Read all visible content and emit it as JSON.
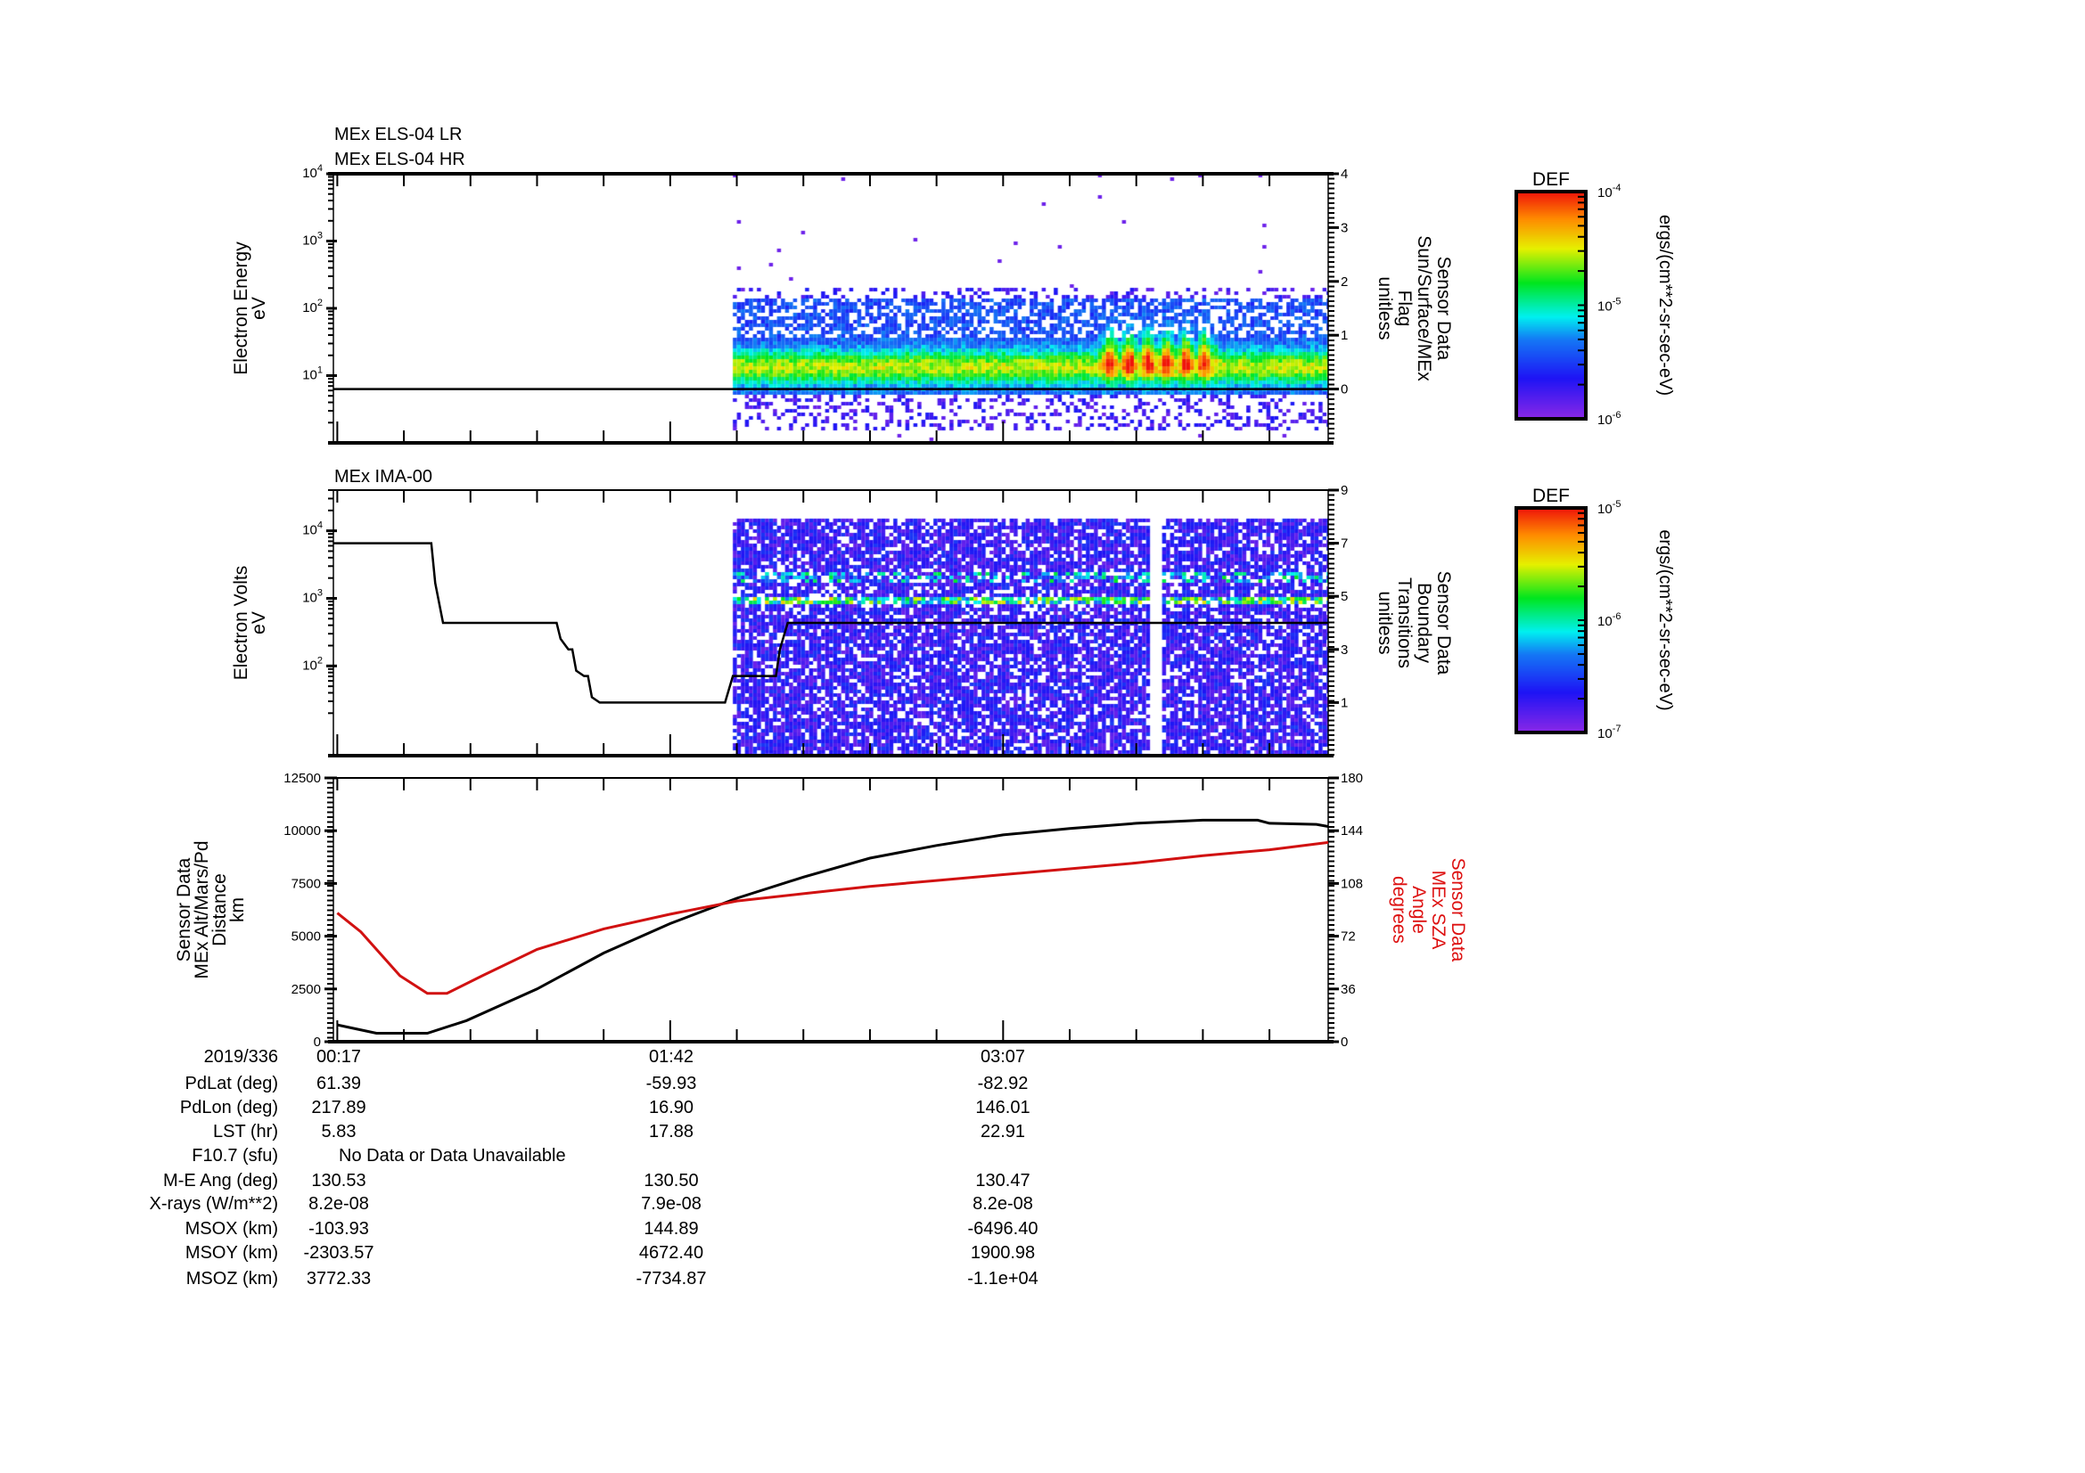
{
  "chart_data": [
    {
      "type": "heatmap",
      "titles": [
        "MEx ELS-04 LR",
        "MEx ELS-04 HR"
      ],
      "ylabel": [
        "Electron Energy",
        "eV"
      ],
      "yscale": "log",
      "ylim": [
        1,
        10000
      ],
      "yticks": [
        [
          "10",
          "1"
        ],
        [
          "10",
          "2"
        ],
        [
          "10",
          "3"
        ],
        [
          "10",
          "4"
        ]
      ],
      "y2label": [
        "Sensor Data",
        "Sun/Surface/MEx",
        "Flag",
        "unitless"
      ],
      "y2lim": [
        -1,
        4
      ],
      "y2ticks": [
        "0",
        "1",
        "2",
        "3",
        "4"
      ],
      "xlim_minutes": [
        16,
        270
      ],
      "data_start_minutes": 118,
      "line_series": {
        "name": "Sun/Surface/MEx Flag",
        "x": [
          16,
          270
        ],
        "y": [
          0,
          0
        ]
      },
      "colorbar": {
        "title": "DEF",
        "range": [
          1e-06,
          0.0001
        ],
        "ticks": [
          [
            "10",
            "-4"
          ],
          [
            "10",
            "-5"
          ],
          [
            "10",
            "-6"
          ]
        ],
        "units": "ergs/(cm**2-sr-sec-eV)"
      }
    },
    {
      "type": "heatmap",
      "titles": [
        "MEx IMA-00"
      ],
      "ylabel": [
        "Electron Volts",
        "eV"
      ],
      "yscale": "log",
      "ylim": [
        4.7,
        40000
      ],
      "yticks": [
        [
          "10",
          "2"
        ],
        [
          "10",
          "3"
        ],
        [
          "10",
          "4"
        ]
      ],
      "y2label": [
        "Sensor Data",
        "Boundary",
        "Transitions",
        "unitless"
      ],
      "y2lim": [
        -1,
        9
      ],
      "y2ticks": [
        "1",
        "3",
        "5",
        "7",
        "9"
      ],
      "xlim_minutes": [
        16,
        270
      ],
      "data_start_minutes": 118,
      "data_gap_minutes": [
        224,
        227
      ],
      "line_series": {
        "name": "Boundary Transitions",
        "x": [
          16,
          41,
          42,
          44,
          73,
          74,
          76,
          77,
          78,
          80,
          81,
          82,
          84,
          116,
          118,
          129,
          130,
          132,
          270
        ],
        "y": [
          7,
          7,
          5.5,
          4,
          4,
          3.4,
          3,
          3,
          2.2,
          2,
          2,
          1.2,
          1,
          1,
          2,
          2,
          3,
          4,
          4
        ]
      },
      "colorbar": {
        "title": "DEF",
        "range": [
          1e-07,
          1e-05
        ],
        "ticks": [
          [
            "10",
            "-5"
          ],
          [
            "10",
            "-6"
          ],
          [
            "10",
            "-7"
          ]
        ],
        "units": "ergs/(cm**2-sr-sec-eV)"
      }
    },
    {
      "type": "line",
      "ylabel": [
        "Sensor Data",
        "MEx Alt/Mars/Pd",
        "Distance",
        "km"
      ],
      "ylim": [
        0,
        12500
      ],
      "yticks": [
        "0",
        "2500",
        "5000",
        "7500",
        "10000",
        "12500"
      ],
      "y2label": [
        "Sensor Data",
        "MEx SZA",
        "Angle",
        "degrees"
      ],
      "y2lim": [
        0,
        180
      ],
      "y2ticks": [
        "0",
        "36",
        "72",
        "108",
        "144",
        "180"
      ],
      "xlim_minutes": [
        16,
        270
      ],
      "series": [
        {
          "name": "MEx Alt/Mars/Pd Distance (km)",
          "color": "#000000",
          "axis": "left",
          "x": [
            17,
            27,
            40,
            50,
            68,
            85,
            102,
            119,
            136,
            153,
            170,
            187,
            204,
            221,
            238,
            252,
            255,
            267,
            270
          ],
          "y": [
            800,
            400,
            400,
            1000,
            2500,
            4200,
            5600,
            6800,
            7800,
            8700,
            9300,
            9800,
            10100,
            10350,
            10500,
            10500,
            10350,
            10300,
            10200
          ]
        },
        {
          "name": "MEx SZA Angle (degrees)",
          "color": "#d11111",
          "axis": "right",
          "x": [
            17,
            23,
            33,
            40,
            45,
            54,
            68,
            85,
            102,
            119,
            136,
            153,
            170,
            187,
            204,
            221,
            238,
            255,
            270
          ],
          "y": [
            87.8,
            75,
            45,
            33,
            33,
            45,
            63,
            77,
            87,
            96,
            101,
            106,
            110,
            114,
            118,
            122,
            127,
            131,
            136
          ]
        }
      ]
    }
  ],
  "table": {
    "date": "2019/336",
    "times": [
      "00:17",
      "01:42",
      "03:07"
    ],
    "rows": [
      {
        "label": "PdLat (deg)",
        "values": [
          "61.39",
          "-59.93",
          "-82.92"
        ]
      },
      {
        "label": "PdLon (deg)",
        "values": [
          "217.89",
          "16.90",
          "146.01"
        ]
      },
      {
        "label": "LST (hr)",
        "values": [
          "5.83",
          "17.88",
          "22.91"
        ]
      },
      {
        "label": "F10.7 (sfu)",
        "values": [
          "No Data or Data Unavailable"
        ]
      },
      {
        "label": "M-E Ang (deg)",
        "values": [
          "130.53",
          "130.50",
          "130.47"
        ]
      },
      {
        "label": "X-rays (W/m**2)",
        "values": [
          "8.2e-08",
          "7.9e-08",
          "8.2e-08"
        ]
      },
      {
        "label": "MSOX (km)",
        "values": [
          "-103.93",
          "144.89",
          "-6496.40"
        ]
      },
      {
        "label": "MSOY (km)",
        "values": [
          "-2303.57",
          "4672.40",
          "1900.98"
        ]
      },
      {
        "label": "MSOZ (km)",
        "values": [
          "3772.33",
          "-7734.87",
          "-1.1e+04"
        ]
      }
    ]
  }
}
